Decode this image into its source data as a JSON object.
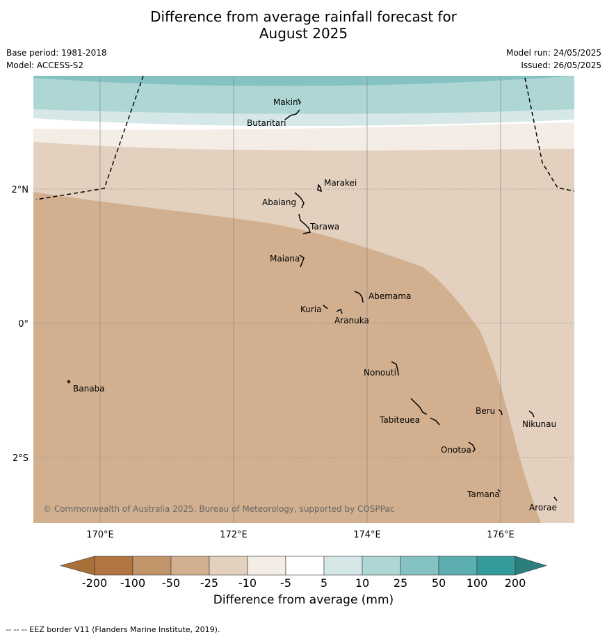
{
  "header": {
    "title_line1": "Difference from average rainfall forecast for",
    "title_line2": "August 2025",
    "base_period": "Base period: 1981-2018",
    "model": "Model: ACCESS-S2",
    "model_run": "Model run: 24/05/2025",
    "issued": "Issued: 26/05/2025"
  },
  "map": {
    "lon_range": [
      169,
      177.1
    ],
    "lat_range": [
      -2.95,
      3.7
    ],
    "lon_ticks": [
      "170°E",
      "172°E",
      "174°E",
      "176°E"
    ],
    "lat_ticks": [
      "2°N",
      "0°",
      "2°S"
    ],
    "copyright": "© Commonwealth of Australia 2025, Bureau of Meteorology, supported by COSPPac",
    "islands": [
      {
        "name": "Makin"
      },
      {
        "name": "Butaritari"
      },
      {
        "name": "Marakei"
      },
      {
        "name": "Abaiang"
      },
      {
        "name": "Tarawa"
      },
      {
        "name": "Maiana"
      },
      {
        "name": "Abemama"
      },
      {
        "name": "Kuria"
      },
      {
        "name": "Aranuka"
      },
      {
        "name": "Nonouti"
      },
      {
        "name": "Banaba"
      },
      {
        "name": "Beru"
      },
      {
        "name": "Nikunau"
      },
      {
        "name": "Tabiteuea"
      },
      {
        "name": "Onotoa"
      },
      {
        "name": "Tamana"
      },
      {
        "name": "Arorae"
      }
    ]
  },
  "colorbar": {
    "title": "Difference from average (mm)",
    "labels": [
      "-200",
      "-100",
      "-50",
      "-25",
      "-10",
      "-5",
      "5",
      "10",
      "25",
      "50",
      "100",
      "200"
    ],
    "colors": [
      "#a86f37",
      "#b07540",
      "#c2946a",
      "#d2b08f",
      "#e3d0be",
      "#f3ede6",
      "#ffffff",
      "#d5e8e7",
      "#aed6d5",
      "#85c3c2",
      "#5dafaf",
      "#349d9b",
      "#2a7f7d"
    ]
  },
  "footer": "-- -- -- EEZ border V11 (Flanders Marine Institute, 2019)."
}
